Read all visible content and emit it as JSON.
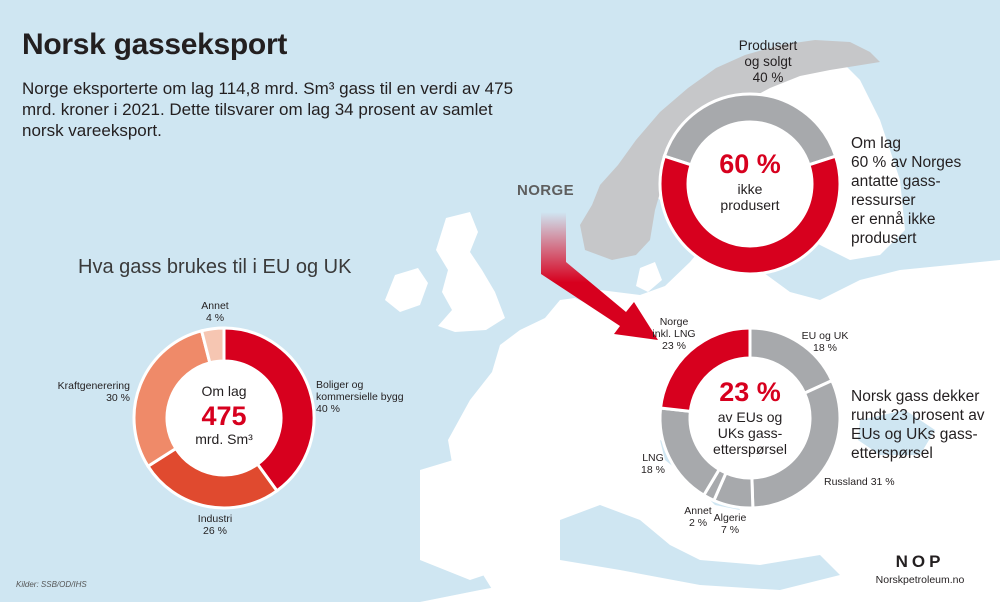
{
  "title": "Norsk gasseksport",
  "intro": "Norge eksporterte om lag 114,8 mrd. Sm³ gass til en verdi av 475 mrd. kroner i 2021. Dette tilsvarer om lag 34 prosent av samlet norsk vareeksport.",
  "map_label": "NORGE",
  "colors": {
    "red": "#d7001e",
    "grey": "#a7a9ac",
    "land": "#ffffff",
    "sea": "#cfe6f2",
    "norway": "#c6c7c9"
  },
  "chart_data": [
    {
      "type": "pie",
      "title": "Hva gass brukes til i EU og UK",
      "center": {
        "line1": "Om lag",
        "value": "475",
        "unit": "mrd. Sm³"
      },
      "slices": [
        {
          "label": "Boliger og kommersielle bygg",
          "label_lines": [
            "Boliger og",
            "kommersielle bygg"
          ],
          "value": 40,
          "value_text": "40 %",
          "color": "#d7001e"
        },
        {
          "label": "Industri",
          "label_lines": [
            "Industri"
          ],
          "value": 26,
          "value_text": "26 %",
          "color": "#e04a2f"
        },
        {
          "label": "Kraftgenerering",
          "label_lines": [
            "Kraftgenerering"
          ],
          "value": 30,
          "value_text": "30 %",
          "color": "#ef8a69"
        },
        {
          "label": "Annet",
          "label_lines": [
            "Annet"
          ],
          "value": 4,
          "value_text": "4 %",
          "color": "#f6c6b2"
        }
      ]
    },
    {
      "type": "pie",
      "title": "",
      "center": {
        "value": "60 %",
        "lines": [
          "ikke",
          "produsert"
        ]
      },
      "slices": [
        {
          "label": "Produsert og solgt",
          "label_lines": [
            "Produsert",
            "og solgt"
          ],
          "value": 40,
          "value_text": "40 %",
          "color": "#a7a9ac"
        },
        {
          "label": "ikke produsert",
          "label_lines": [],
          "value": 60,
          "value_text": "",
          "color": "#d7001e"
        }
      ],
      "note": [
        "Om lag",
        "60 % av Norges",
        "antatte gass-",
        "ressurser",
        "er ennå ikke",
        "produsert"
      ]
    },
    {
      "type": "pie",
      "title": "",
      "center": {
        "value": "23 %",
        "lines": [
          "av EUs og",
          "UKs gass-",
          "etterspørsel"
        ]
      },
      "slices": [
        {
          "label": "EU og UK",
          "label_lines": [
            "EU og UK"
          ],
          "value": 18,
          "value_text": "18 %",
          "color": "#a7a9ac"
        },
        {
          "label": "Russland",
          "label_lines": [
            "Russland 31 %"
          ],
          "value": 31,
          "value_text": "",
          "color": "#a7a9ac"
        },
        {
          "label": "Algerie",
          "label_lines": [
            "Algerie"
          ],
          "value": 7,
          "value_text": "7 %",
          "color": "#a7a9ac"
        },
        {
          "label": "Annet",
          "label_lines": [
            "Annet"
          ],
          "value": 2,
          "value_text": "2 %",
          "color": "#a7a9ac"
        },
        {
          "label": "LNG",
          "label_lines": [
            "LNG"
          ],
          "value": 18,
          "value_text": "18 %",
          "color": "#a7a9ac"
        },
        {
          "label": "Norge inkl. LNG",
          "label_lines": [
            "Norge",
            "inkl. LNG"
          ],
          "value": 23,
          "value_text": "23 %",
          "color": "#d7001e"
        }
      ],
      "note": [
        "Norsk gass dekker",
        "rundt 23 prosent av",
        "EUs og UKs gass-",
        "etterspørsel"
      ]
    }
  ],
  "source": "Kilder: SSB/OD/IHS",
  "brand": {
    "logo": "NOP",
    "url": "Norskpetroleum.no"
  }
}
